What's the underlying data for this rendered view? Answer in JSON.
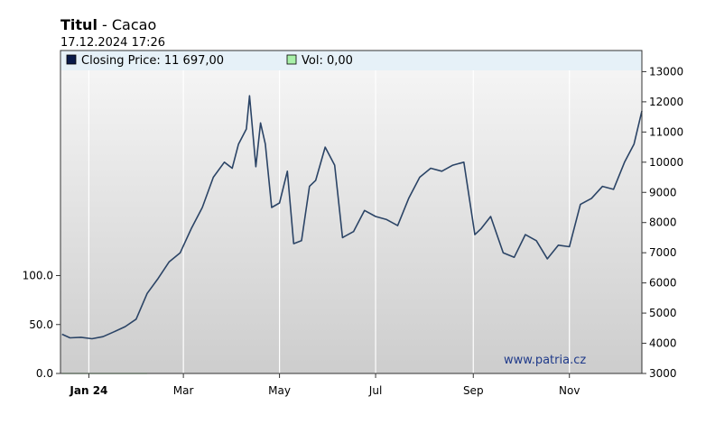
{
  "header": {
    "title_main": "Titul",
    "title_sep": " - ",
    "title_instrument": "Cacao",
    "timestamp": "17.12.2024 17:26"
  },
  "legend": {
    "closing_label": "Closing Price: 11 697,00",
    "volume_label": "Vol: 0,00"
  },
  "watermark": "www.patria.cz",
  "colors": {
    "line": "#2b4466",
    "legend_closing": "#0a1a4a",
    "legend_volume": "#a8f0a8",
    "legend_band": "#e6f1f8"
  },
  "chart_data": {
    "type": "line",
    "title": "Titul - Cacao",
    "series": [
      {
        "name": "Closing Price",
        "x": [
          "2023-12-15",
          "2023-12-20",
          "2023-12-27",
          "2024-01-03",
          "2024-01-10",
          "2024-01-17",
          "2024-01-24",
          "2024-01-31",
          "2024-02-07",
          "2024-02-14",
          "2024-02-21",
          "2024-02-28",
          "2024-03-06",
          "2024-03-13",
          "2024-03-20",
          "2024-03-27",
          "2024-04-01",
          "2024-04-05",
          "2024-04-10",
          "2024-04-12",
          "2024-04-16",
          "2024-04-19",
          "2024-04-22",
          "2024-04-26",
          "2024-05-01",
          "2024-05-06",
          "2024-05-10",
          "2024-05-15",
          "2024-05-20",
          "2024-05-24",
          "2024-05-30",
          "2024-06-05",
          "2024-06-10",
          "2024-06-17",
          "2024-06-24",
          "2024-07-01",
          "2024-07-08",
          "2024-07-15",
          "2024-07-22",
          "2024-07-29",
          "2024-08-05",
          "2024-08-12",
          "2024-08-19",
          "2024-08-26",
          "2024-09-02",
          "2024-09-06",
          "2024-09-12",
          "2024-09-20",
          "2024-09-27",
          "2024-10-04",
          "2024-10-11",
          "2024-10-18",
          "2024-10-25",
          "2024-11-01",
          "2024-11-08",
          "2024-11-15",
          "2024-11-22",
          "2024-11-29",
          "2024-12-06",
          "2024-12-12",
          "2024-12-17"
        ],
        "values": [
          4300,
          4180,
          4200,
          4150,
          4220,
          4380,
          4550,
          4800,
          5650,
          6150,
          6700,
          7000,
          7800,
          8500,
          9500,
          10000,
          9800,
          10600,
          11100,
          12200,
          9850,
          11300,
          10600,
          8500,
          8650,
          9700,
          7300,
          7400,
          9200,
          9400,
          10500,
          9900,
          7500,
          7700,
          8400,
          8200,
          8100,
          7900,
          8800,
          9500,
          9800,
          9700,
          9900,
          10000,
          7600,
          7800,
          8200,
          7000,
          6850,
          7600,
          7400,
          6800,
          7250,
          7200,
          8600,
          8800,
          9200,
          9100,
          10000,
          10600,
          11697
        ]
      },
      {
        "name": "Vol",
        "x": [
          "2023-12-15",
          "2023-12-27",
          "2024-01-10",
          "2024-02-07"
        ],
        "values": [
          0,
          0,
          0,
          0
        ]
      }
    ],
    "x_ticks": [
      "Jan 24",
      "Mar",
      "May",
      "Jul",
      "Sep",
      "Nov"
    ],
    "x_tick_dates": [
      "2024-01-01",
      "2024-03-01",
      "2024-05-01",
      "2024-07-01",
      "2024-09-01",
      "2024-11-01"
    ],
    "x_range": [
      "2023-12-14",
      "2024-12-17"
    ],
    "y_right_ticks": [
      3000,
      4000,
      5000,
      6000,
      7000,
      8000,
      9000,
      10000,
      11000,
      12000,
      13000
    ],
    "y_right_range": [
      3000,
      13700
    ],
    "y_left_ticks": [
      "0.0",
      "50.0",
      "100.0"
    ],
    "y_left_range": [
      0,
      330
    ],
    "grid": true,
    "legend_position": "top"
  }
}
